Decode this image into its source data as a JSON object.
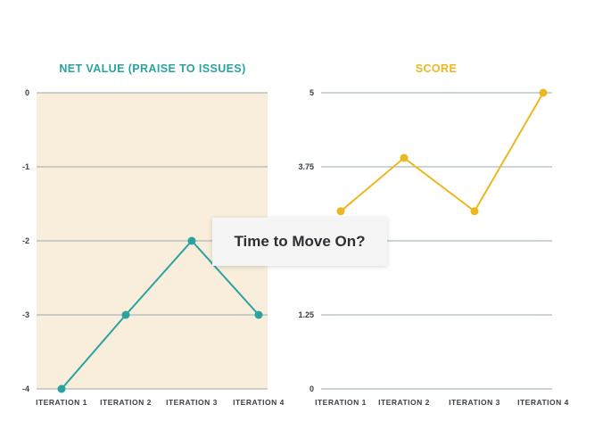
{
  "colors": {
    "teal": "#2aa3a0",
    "gold": "#ecb822",
    "highlight_band": "#f8eedb",
    "grid": "#9aa9ae",
    "text": "#3a3f45"
  },
  "callout": {
    "text": "Time to Move On?"
  },
  "chart_data": [
    {
      "type": "line",
      "title": "NET VALUE (PRAISE TO ISSUES)",
      "categories": [
        "ITERATION 1",
        "ITERATION 2",
        "ITERATION 3",
        "ITERATION 4"
      ],
      "values": [
        -4,
        -3,
        -2,
        -3
      ],
      "ylim": [
        -4,
        0
      ],
      "yticks": [
        0,
        -1,
        -2,
        -3,
        -4
      ],
      "ytick_labels": [
        "0",
        "-1",
        "-2",
        "-3",
        "-4"
      ],
      "color": "#2aa3a0",
      "background_highlight": true,
      "grid": true
    },
    {
      "type": "line",
      "title": "SCORE",
      "categories": [
        "ITERATION 1",
        "ITERATION 2",
        "ITERATION 3",
        "ITERATION 4"
      ],
      "values": [
        3.0,
        3.9,
        3.0,
        5.0
      ],
      "ylim": [
        0,
        5
      ],
      "yticks": [
        5,
        3.75,
        2.5,
        1.25,
        0
      ],
      "ytick_labels": [
        "5",
        "3.75",
        "",
        "1.25",
        "0"
      ],
      "color": "#ecb822",
      "background_highlight": false,
      "grid": true
    }
  ]
}
